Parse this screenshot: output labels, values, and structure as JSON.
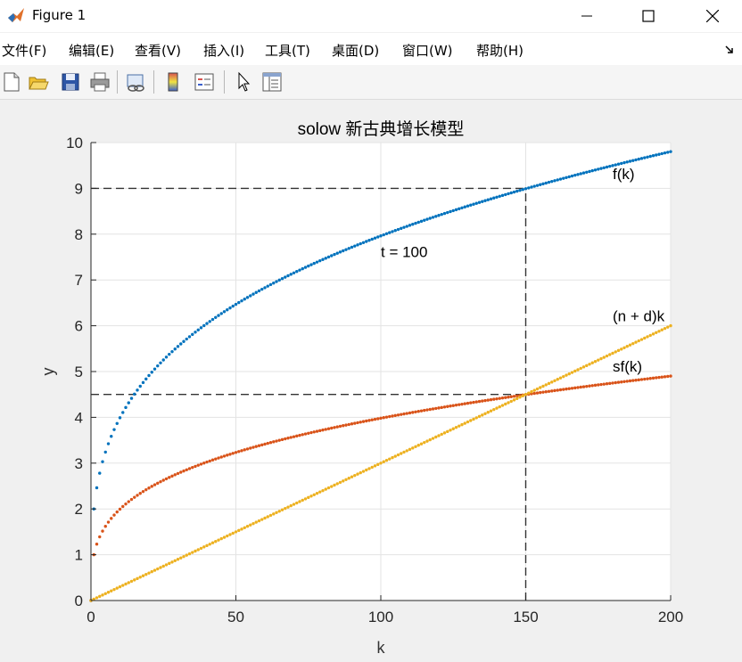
{
  "window": {
    "title": "Figure 1",
    "app_icon": "matlab-logo-icon",
    "controls": [
      "minimize-icon",
      "maximize-icon",
      "close-icon"
    ]
  },
  "menu": {
    "items": [
      {
        "label": "文件(F)"
      },
      {
        "label": "编辑(E)"
      },
      {
        "label": "查看(V)"
      },
      {
        "label": "插入(I)"
      },
      {
        "label": "工具(T)"
      },
      {
        "label": "桌面(D)"
      },
      {
        "label": "窗口(W)"
      },
      {
        "label": "帮助(H)"
      }
    ]
  },
  "toolbar": {
    "buttons": [
      "new-figure-icon",
      "open-file-icon",
      "save-icon",
      "print-icon",
      "link-plot-icon",
      "colorbar-icon",
      "legend-icon",
      "pointer-icon",
      "property-editor-icon"
    ]
  },
  "colors": {
    "f_curve": "#0072BD",
    "sf_curve": "#D95319",
    "nd_line": "#EDB120",
    "dashed": "#333333"
  },
  "chart_data": {
    "type": "scatter",
    "title": "solow 新古典增长模型",
    "xlabel": "k",
    "ylabel": "y",
    "xlim": [
      0,
      200
    ],
    "ylim": [
      0,
      10
    ],
    "xticks": [
      "0",
      "50",
      "100",
      "150",
      "200"
    ],
    "yticks": [
      "0",
      "1",
      "2",
      "3",
      "4",
      "5",
      "6",
      "7",
      "8",
      "9",
      "10"
    ],
    "grid": true,
    "series": [
      {
        "name": "f(k)",
        "formula": "2*k^(0.3)",
        "x_range": [
          0,
          200
        ],
        "step": 1,
        "color": "#0072BD"
      },
      {
        "name": "sf(k)",
        "formula": "0.5*2*k^(0.3)",
        "x_range": [
          0,
          200
        ],
        "step": 1,
        "color": "#D95319"
      },
      {
        "name": "(n + d)k",
        "formula": "0.03*k",
        "x_range": [
          0,
          200
        ],
        "step": 1,
        "color": "#EDB120"
      }
    ],
    "reference_lines": [
      {
        "type": "horizontal",
        "y": 9,
        "x_from": 0,
        "x_to": 150
      },
      {
        "type": "horizontal",
        "y": 4.5,
        "x_from": 0,
        "x_to": 150
      },
      {
        "type": "vertical",
        "x": 150,
        "y_from": 0,
        "y_to": 9
      }
    ],
    "annotations": [
      {
        "text": "f(k)",
        "x": 180,
        "y": 9.2
      },
      {
        "text": "t = 100",
        "x": 100,
        "y": 7.5
      },
      {
        "text": "(n + d)k",
        "x": 180,
        "y": 6.1
      },
      {
        "text": "sf(k)",
        "x": 180,
        "y": 5.0
      }
    ]
  }
}
